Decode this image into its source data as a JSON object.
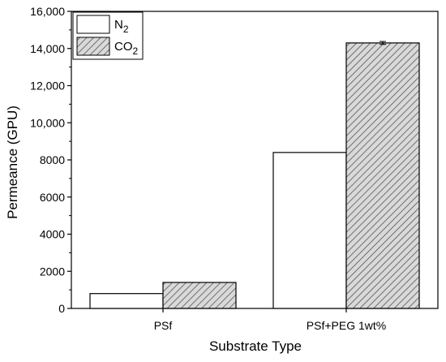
{
  "chart_data": {
    "type": "bar",
    "categories": [
      "PSf",
      "PSf+PEG 1wt%"
    ],
    "series": [
      {
        "name": "N2",
        "name_base": "N",
        "name_sub": "2",
        "values": [
          800,
          8400
        ],
        "error": [
          0,
          0
        ],
        "fill": "#ffffff",
        "pattern": "none"
      },
      {
        "name": "CO2",
        "name_base": "CO",
        "name_sub": "2",
        "values": [
          1400,
          14300
        ],
        "error": [
          0,
          80
        ],
        "fill": "#d9d9d9",
        "pattern": "diagonal-hatch"
      }
    ],
    "xlabel": "Substrate Type",
    "ylabel": "Permeance (GPU)",
    "ylim": [
      0,
      16000
    ],
    "yticks": [
      0,
      2000,
      4000,
      6000,
      8000,
      10000,
      12000,
      14000,
      16000
    ],
    "ytick_labels": [
      "0",
      "2000",
      "4000",
      "6000",
      "8000",
      "10,000",
      "12,000",
      "14,000",
      "16,000"
    ],
    "legend_position": "top-left",
    "grid": false
  }
}
